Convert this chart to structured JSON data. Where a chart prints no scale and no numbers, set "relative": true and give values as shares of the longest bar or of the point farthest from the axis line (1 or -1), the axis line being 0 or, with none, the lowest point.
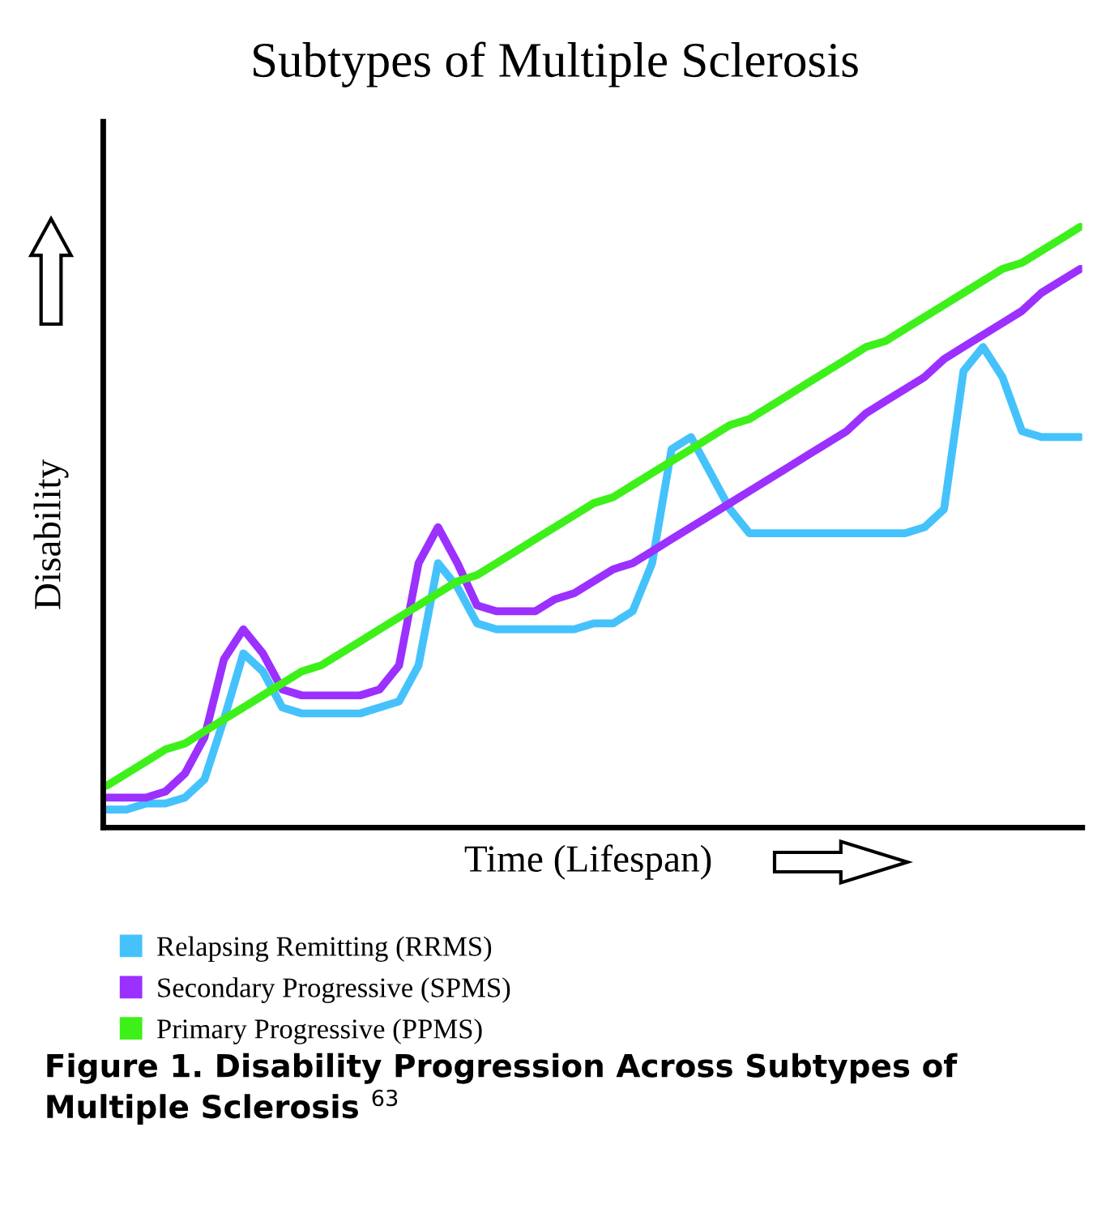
{
  "chart_data": {
    "type": "line",
    "title": "Subtypes of Multiple Sclerosis",
    "xlabel": "Time (Lifespan)",
    "ylabel": "Disability",
    "relative": true,
    "legend": "bottom",
    "grid": false,
    "marker": "none",
    "line_style": "solid",
    "categories": [
      null,
      null,
      null,
      null,
      null,
      null,
      null,
      null,
      null,
      null,
      null,
      null,
      null,
      null,
      null,
      null,
      null,
      null,
      null,
      null,
      null,
      null,
      null,
      null,
      null,
      null,
      null,
      null,
      null,
      null,
      null,
      null,
      null,
      null,
      null,
      null,
      null,
      null,
      null,
      null,
      null,
      null,
      null,
      null,
      null,
      null,
      null,
      null,
      null,
      null,
      null
    ],
    "series": [
      {
        "name": "Relapsing Remitting (RRMS)",
        "color": "#45c2fb",
        "values": [
          0.03,
          0.03,
          0.04,
          0.04,
          0.05,
          0.08,
          0.18,
          0.29,
          0.26,
          0.2,
          0.19,
          0.19,
          0.19,
          0.19,
          0.2,
          0.21,
          0.27,
          0.44,
          0.4,
          0.34,
          0.33,
          0.33,
          0.33,
          0.33,
          0.33,
          0.34,
          0.34,
          0.36,
          0.44,
          0.63,
          0.65,
          0.59,
          0.53,
          0.49,
          0.49,
          0.49,
          0.49,
          0.49,
          0.49,
          0.49,
          0.49,
          0.49,
          0.5,
          0.53,
          0.76,
          0.8,
          0.75,
          0.66,
          0.65,
          0.65,
          0.65
        ]
      },
      {
        "name": "Secondary Progressive (SPMS)",
        "color": "#9b30ff",
        "values": [
          0.05,
          0.05,
          0.05,
          0.06,
          0.09,
          0.15,
          0.28,
          0.33,
          0.29,
          0.23,
          0.22,
          0.22,
          0.22,
          0.22,
          0.23,
          0.27,
          0.44,
          0.5,
          0.44,
          0.37,
          0.36,
          0.36,
          0.36,
          0.38,
          0.39,
          0.41,
          0.43,
          0.44,
          0.46,
          0.48,
          0.5,
          0.52,
          0.54,
          0.56,
          0.58,
          0.6,
          0.62,
          0.64,
          0.66,
          0.69,
          0.71,
          0.73,
          0.75,
          0.78,
          0.8,
          0.82,
          0.84,
          0.86,
          0.89,
          0.91,
          0.93
        ]
      },
      {
        "name": "Primary Progressive (PPMS)",
        "color": "#3ef01a",
        "values": [
          0.07,
          0.09,
          0.11,
          0.13,
          0.14,
          0.16,
          0.18,
          0.2,
          0.22,
          0.24,
          0.26,
          0.27,
          0.29,
          0.31,
          0.33,
          0.35,
          0.37,
          0.39,
          0.41,
          0.42,
          0.44,
          0.46,
          0.48,
          0.5,
          0.52,
          0.54,
          0.55,
          0.57,
          0.59,
          0.61,
          0.63,
          0.65,
          0.67,
          0.68,
          0.7,
          0.72,
          0.74,
          0.76,
          0.78,
          0.8,
          0.81,
          0.83,
          0.85,
          0.87,
          0.89,
          0.91,
          0.93,
          0.94,
          0.96,
          0.98,
          1.0
        ]
      }
    ],
    "annotations": [
      "Figure 1. Disability Progression Across Subtypes of Multiple Sclerosis $^{63}$"
    ]
  }
}
